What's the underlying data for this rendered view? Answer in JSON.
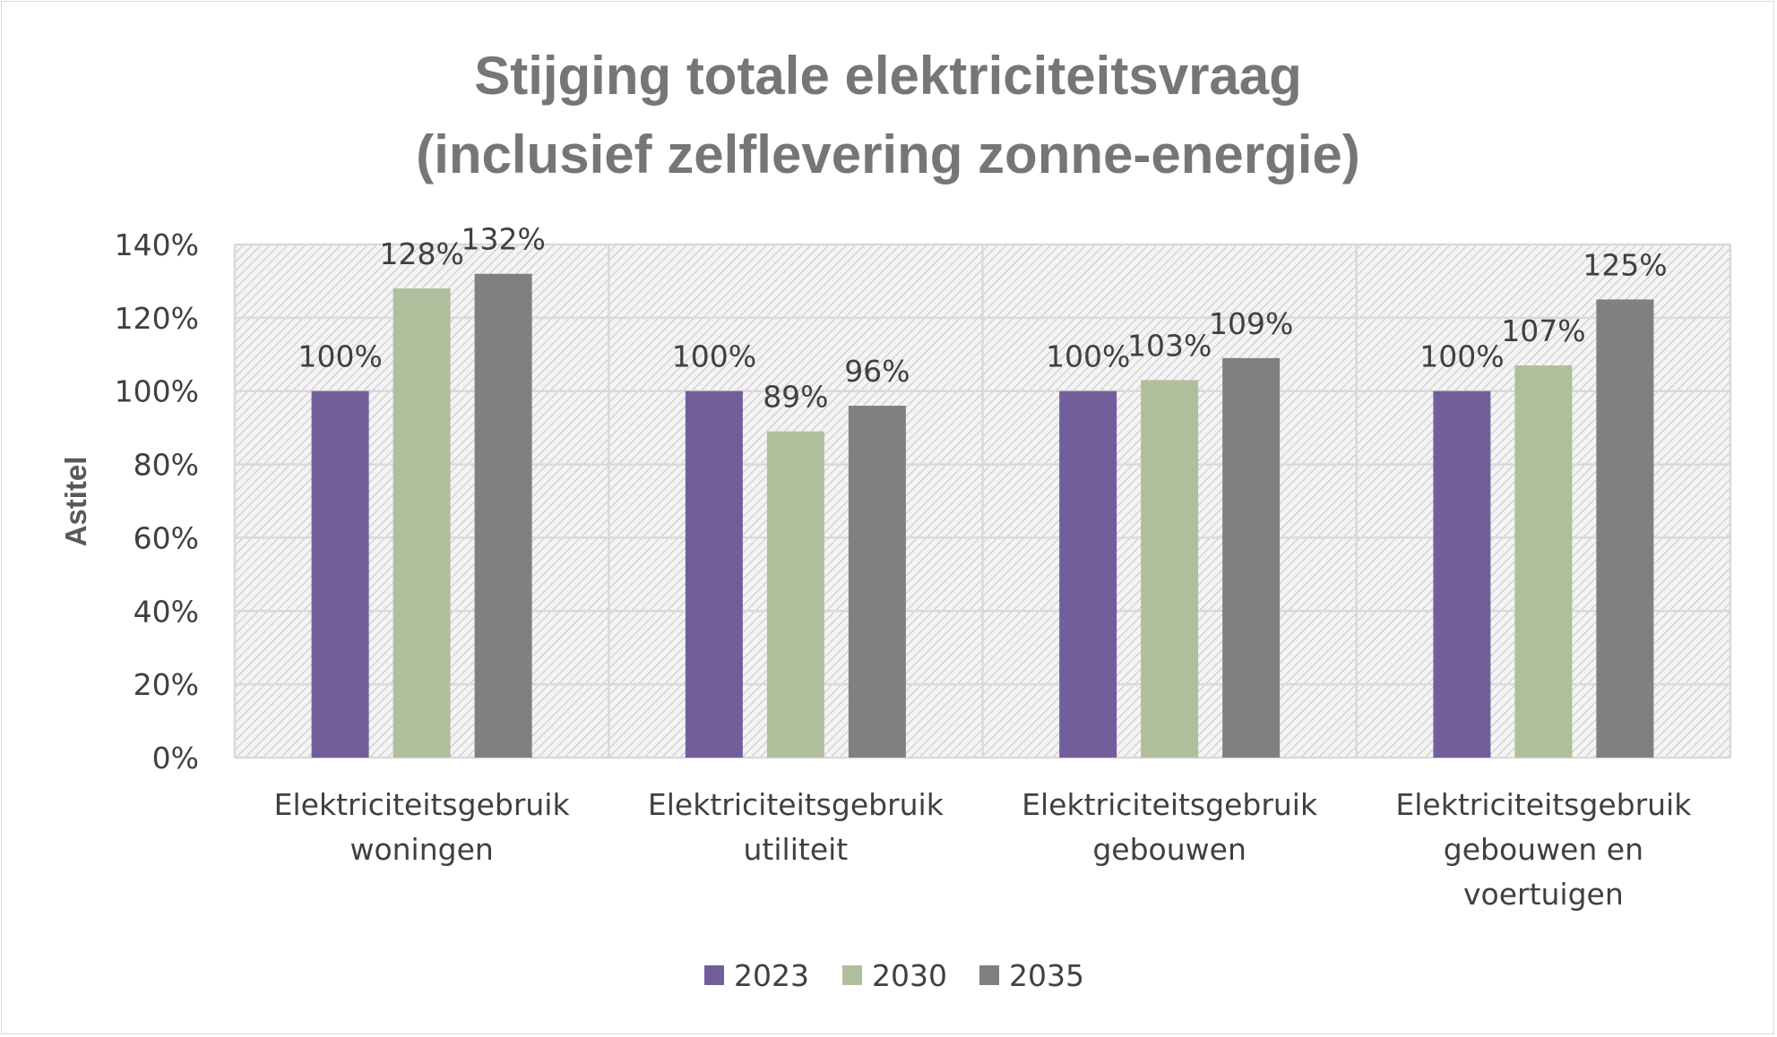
{
  "chart_data": {
    "type": "bar",
    "title": [
      "Stijging totale elektriciteitsvraag",
      "(inclusief zelflevering zonne-energie)"
    ],
    "ylabel": "Astitel",
    "xlabel": "",
    "ylim": [
      0,
      1.4
    ],
    "y_ticks": [
      "0%",
      "20%",
      "40%",
      "60%",
      "80%",
      "100%",
      "120%",
      "140%"
    ],
    "grid": true,
    "legend_position": "bottom",
    "categories": [
      [
        "Elektriciteitsgebruik",
        "woningen"
      ],
      [
        "Elektriciteitsgebruik",
        "utiliteit"
      ],
      [
        "Elektriciteitsgebruik",
        "gebouwen"
      ],
      [
        "Elektriciteitsgebruik",
        "gebouwen en",
        "voertuigen"
      ]
    ],
    "series": [
      {
        "name": "2023",
        "color": "#735e9c",
        "values": [
          1.0,
          1.0,
          1.0,
          1.0
        ],
        "labels": [
          "100%",
          "100%",
          "100%",
          "100%"
        ]
      },
      {
        "name": "2030",
        "color": "#b0bf9b",
        "values": [
          1.28,
          0.89,
          1.03,
          1.07
        ],
        "labels": [
          "128%",
          "89%",
          "103%",
          "107%"
        ]
      },
      {
        "name": "2035",
        "color": "#808080",
        "values": [
          1.32,
          0.96,
          1.09,
          1.25
        ],
        "labels": [
          "132%",
          "96%",
          "109%",
          "125%"
        ]
      }
    ]
  }
}
